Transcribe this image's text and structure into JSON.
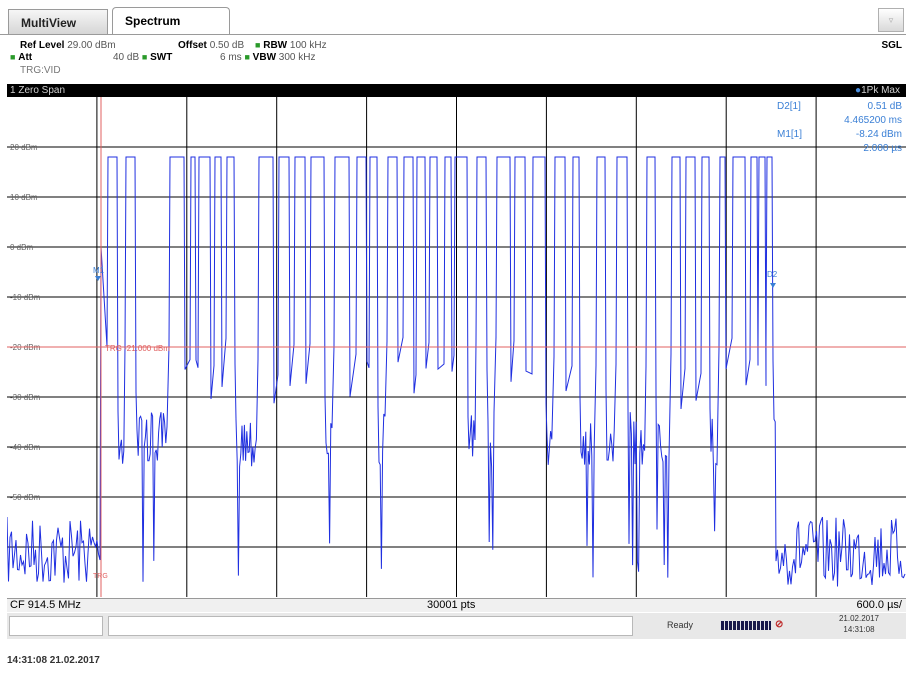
{
  "tabs": {
    "multiview": "MultiView",
    "spectrum": "Spectrum"
  },
  "settings": {
    "ref_level_label": "Ref Level",
    "ref_level_value": "29.00 dBm",
    "offset_label": "Offset",
    "offset_value": "0.50 dB",
    "rbw_label": "RBW",
    "rbw_value": "100 kHz",
    "att_label": "Att",
    "att_value": "40 dB",
    "swt_label": "SWT",
    "swt_value": "6 ms",
    "vbw_label": "VBW",
    "vbw_value": "300 kHz",
    "trigger": "TRG:VID",
    "sweep_mode": "SGL"
  },
  "trace_header": {
    "title": "1 Zero Span",
    "trace_mode": "1Pk Max"
  },
  "markers": {
    "d2_label": "D2[1]",
    "d2_level": "0.51 dB",
    "d2_time": "4.465200 ms",
    "m1_label": "M1[1]",
    "m1_level": "-8.24 dBm",
    "m1_time": "2.000 µs",
    "m1_flag": "M1",
    "d2_flag": "D2"
  },
  "y_axis": {
    "labels": [
      "20 dBm",
      "10 dBm",
      "0 dBm",
      "-10 dBm",
      "-20 dBm",
      "-30 dBm",
      "-40 dBm",
      "-50 dBm"
    ]
  },
  "trigger_line": {
    "label": "TRG -21.000 dBm",
    "level_dbm": -21,
    "marker": "TRG"
  },
  "footer": {
    "cf": "CF 914.5 MHz",
    "points": "30001 pts",
    "span": "600.0 µs/"
  },
  "status": {
    "state": "Ready",
    "date": "21.02.2017",
    "time": "14:31:08"
  },
  "timestamp": "14:31:08  21.02.2017",
  "colors": {
    "trace": "#1f2fe0",
    "grid": "#000000",
    "trigger": "#e06060",
    "marker_text": "#3a7fd5",
    "header_bg": "#000000"
  }
}
